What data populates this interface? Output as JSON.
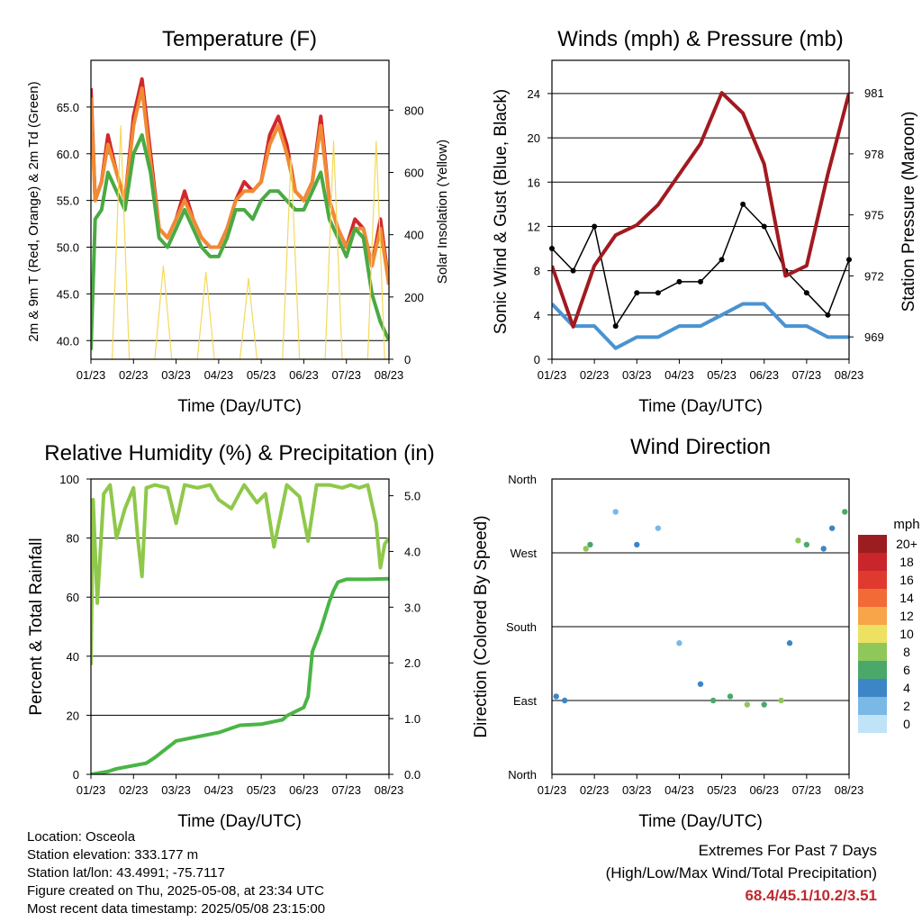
{
  "panels": {
    "temperature": {
      "title": "Temperature (F)",
      "ylabel_left": "2m & 9m T (Red, Orange) & 2m Td (Green)",
      "ylabel_right": "Solar Insolation (Yellow)",
      "xlabel": "Time (Day/UTC)"
    },
    "winds": {
      "title": "Winds (mph) & Pressure (mb)",
      "ylabel_left": "Sonic Wind & Gust (Blue, Black)",
      "ylabel_right": "Station Pressure (Maroon)",
      "xlabel": "Time (Day/UTC)"
    },
    "humidity": {
      "title": "Relative Humidity (%) & Precipitation (in)",
      "ylabel_left": "Percent & Total Rainfall",
      "xlabel": "Time (Day/UTC)"
    },
    "direction": {
      "title": "Wind Direction",
      "ylabel_left": "Direction (Colored By Speed)",
      "xlabel": "Time (Day/UTC)",
      "legend_title": "mph",
      "legend_labels": [
        "20+",
        "18",
        "16",
        "14",
        "12",
        "10",
        "8",
        "6",
        "4",
        "2",
        "0"
      ],
      "legend_colors": [
        "#9b1d20",
        "#c8262b",
        "#e03a2f",
        "#f26a36",
        "#f7a548",
        "#ece161",
        "#8fc75a",
        "#4aa86b",
        "#3d86c6",
        "#7ab8e6",
        "#bfe3f7"
      ]
    }
  },
  "info": {
    "location": "Location: Osceola",
    "elevation": "Station elevation: 333.177 m",
    "latlon": "Station lat/lon: 43.4991; -75.7117",
    "created": "Figure created on Thu, 2025-05-08, at 23:34 UTC",
    "recent": "Most recent data timestamp: 2025/05/08 23:15:00"
  },
  "extremes": {
    "title": "Extremes For Past 7 Days",
    "subtitle": "(High/Low/Max Wind/Total Precipitation)",
    "values": "68.4/45.1/10.2/3.51"
  },
  "chart_data": [
    {
      "type": "line",
      "title": "Temperature (F)",
      "xlabel": "Time (Day/UTC)",
      "ylabel": "2m & 9m T (Red, Orange) & 2m Td (Green)",
      "y2label": "Solar Insolation (Yellow)",
      "x_ticks": [
        "01/23",
        "02/23",
        "03/23",
        "04/23",
        "05/23",
        "06/23",
        "07/23",
        "08/23"
      ],
      "xlim": [
        0,
        7
      ],
      "ylim": [
        38,
        70
      ],
      "y_ticks": [
        40.0,
        45.0,
        50.0,
        55.0,
        60.0,
        65.0
      ],
      "y2lim": [
        0,
        960
      ],
      "y2_ticks": [
        0,
        200,
        400,
        600,
        800
      ],
      "grid": true,
      "series": [
        {
          "name": "2m T",
          "color": "#d0282d",
          "x": [
            0,
            0.1,
            0.25,
            0.4,
            0.6,
            0.8,
            1.0,
            1.2,
            1.4,
            1.6,
            1.8,
            2.0,
            2.2,
            2.4,
            2.6,
            2.8,
            3.0,
            3.2,
            3.4,
            3.6,
            3.8,
            4.0,
            4.2,
            4.4,
            4.6,
            4.8,
            5.0,
            5.2,
            5.4,
            5.6,
            5.8,
            6.0,
            6.2,
            6.4,
            6.6,
            6.8,
            7.0
          ],
          "y": [
            67,
            55,
            57,
            62,
            58,
            55,
            64,
            68,
            60,
            52,
            51,
            53,
            56,
            53,
            51,
            50,
            50,
            52,
            55,
            57,
            56,
            57,
            62,
            64,
            61,
            56,
            55,
            57,
            64,
            55,
            52,
            50,
            53,
            52,
            48,
            53,
            46
          ]
        },
        {
          "name": "9m T",
          "color": "#f18a33",
          "x": [
            0,
            0.1,
            0.25,
            0.4,
            0.6,
            0.8,
            1.0,
            1.2,
            1.4,
            1.6,
            1.8,
            2.0,
            2.2,
            2.4,
            2.6,
            2.8,
            3.0,
            3.2,
            3.4,
            3.6,
            3.8,
            4.0,
            4.2,
            4.4,
            4.6,
            4.8,
            5.0,
            5.2,
            5.4,
            5.6,
            5.8,
            6.0,
            6.2,
            6.4,
            6.6,
            6.8,
            7.0
          ],
          "y": [
            66,
            55,
            57,
            61,
            58,
            55,
            63,
            67,
            59,
            52,
            51,
            53,
            55,
            53,
            51,
            50,
            50,
            52,
            55,
            56,
            56,
            57,
            61,
            63,
            60,
            56,
            55,
            57,
            63,
            55,
            52,
            50,
            52,
            52,
            48,
            52,
            46
          ]
        },
        {
          "name": "2m Td",
          "color": "#4aaa43",
          "x": [
            0,
            0.1,
            0.25,
            0.4,
            0.6,
            0.8,
            1.0,
            1.2,
            1.4,
            1.6,
            1.8,
            2.0,
            2.2,
            2.4,
            2.6,
            2.8,
            3.0,
            3.2,
            3.4,
            3.6,
            3.8,
            4.0,
            4.2,
            4.4,
            4.6,
            4.8,
            5.0,
            5.2,
            5.4,
            5.6,
            5.8,
            6.0,
            6.2,
            6.4,
            6.6,
            6.8,
            7.0
          ],
          "y": [
            39,
            53,
            54,
            58,
            56,
            54,
            60,
            62,
            58,
            51,
            50,
            52,
            54,
            52,
            50,
            49,
            49,
            51,
            54,
            54,
            53,
            55,
            56,
            56,
            55,
            54,
            54,
            56,
            58,
            53,
            51,
            49,
            52,
            51,
            45,
            42,
            40
          ]
        },
        {
          "name": "Solar Insolation",
          "color": "#f3d95c",
          "axis": "right",
          "x": [
            0.5,
            0.7,
            0.9,
            1.5,
            1.7,
            1.9,
            2.5,
            2.7,
            2.9,
            3.5,
            3.7,
            3.9,
            4.5,
            4.7,
            4.9,
            5.5,
            5.7,
            5.9,
            6.5,
            6.7,
            6.9
          ],
          "y": [
            0,
            750,
            0,
            0,
            300,
            0,
            0,
            280,
            0,
            0,
            260,
            0,
            0,
            650,
            0,
            0,
            700,
            0,
            0,
            700,
            0
          ]
        }
      ]
    },
    {
      "type": "line",
      "title": "Winds (mph) & Pressure (mb)",
      "xlabel": "Time (Day/UTC)",
      "ylabel": "Sonic Wind & Gust (Blue, Black)",
      "y2label": "Station Pressure (Maroon)",
      "x_ticks": [
        "01/23",
        "02/23",
        "03/23",
        "04/23",
        "05/23",
        "06/23",
        "07/23",
        "08/23"
      ],
      "xlim": [
        0,
        7
      ],
      "ylim": [
        0,
        27
      ],
      "y_ticks": [
        0,
        4,
        8,
        12,
        16,
        20,
        24
      ],
      "y2lim": [
        967.9,
        982.6
      ],
      "y2_ticks": [
        969,
        972,
        975,
        978,
        981
      ],
      "grid": true,
      "series": [
        {
          "name": "Sonic Wind",
          "color": "#4a93d1",
          "x": [
            0,
            0.5,
            1.0,
            1.5,
            2.0,
            2.5,
            3.0,
            3.5,
            4.0,
            4.5,
            5.0,
            5.5,
            6.0,
            6.5,
            7.0
          ],
          "y": [
            5,
            3,
            3,
            1,
            2,
            2,
            3,
            3,
            4,
            5,
            5,
            3,
            3,
            2,
            2
          ]
        },
        {
          "name": "Gust",
          "color": "#000000",
          "x": [
            0,
            0.5,
            1.0,
            1.5,
            2.0,
            2.5,
            3.0,
            3.5,
            4.0,
            4.5,
            5.0,
            5.5,
            6.0,
            6.5,
            7.0
          ],
          "y": [
            10,
            8,
            12,
            3,
            6,
            6,
            7,
            7,
            9,
            14,
            12,
            8,
            6,
            4,
            9
          ]
        },
        {
          "name": "Station Pressure",
          "color": "#a11a20",
          "axis": "right",
          "x": [
            0,
            0.5,
            1.0,
            1.5,
            2.0,
            2.5,
            3.0,
            3.5,
            4.0,
            4.5,
            5.0,
            5.5,
            6.0,
            6.5,
            7.0
          ],
          "y": [
            972.5,
            969.5,
            972.5,
            974,
            974.5,
            975.5,
            977,
            978.5,
            981,
            980,
            977.5,
            972,
            972.5,
            977,
            981
          ]
        }
      ]
    },
    {
      "type": "line",
      "title": "Relative Humidity (%) & Precipitation (in)",
      "xlabel": "Time (Day/UTC)",
      "ylabel": "Percent & Total Rainfall",
      "x_ticks": [
        "01/23",
        "02/23",
        "03/23",
        "04/23",
        "05/23",
        "06/23",
        "07/23",
        "08/23"
      ],
      "xlim": [
        0,
        7
      ],
      "ylim": [
        0,
        100
      ],
      "y_ticks": [
        0,
        20,
        40,
        60,
        80,
        100
      ],
      "y2lim": [
        0.0,
        5.3
      ],
      "y2_ticks": [
        0.0,
        1.0,
        2.0,
        3.0,
        4.0,
        5.0
      ],
      "grid": true,
      "series": [
        {
          "name": "Relative Humidity",
          "color": "#8fc84a",
          "x": [
            0,
            0.05,
            0.15,
            0.3,
            0.45,
            0.6,
            0.8,
            1.0,
            1.1,
            1.2,
            1.3,
            1.5,
            1.8,
            2.0,
            2.2,
            2.5,
            2.8,
            3.0,
            3.3,
            3.6,
            3.9,
            4.1,
            4.3,
            4.6,
            4.9,
            5.1,
            5.3,
            5.6,
            5.9,
            6.1,
            6.3,
            6.5,
            6.7,
            6.8,
            6.9,
            7.0
          ],
          "y": [
            37,
            93,
            58,
            95,
            98,
            80,
            90,
            97,
            80,
            67,
            97,
            98,
            97,
            85,
            98,
            97,
            98,
            93,
            90,
            98,
            92,
            95,
            77,
            98,
            94,
            79,
            98,
            98,
            97,
            98,
            97,
            98,
            85,
            70,
            78,
            80
          ]
        },
        {
          "name": "Total Rainfall",
          "color": "#4ab546",
          "axis": "right",
          "x": [
            0,
            0.4,
            0.6,
            1.3,
            1.5,
            2.0,
            3.0,
            3.5,
            4.0,
            4.5,
            4.6,
            5.0,
            5.1,
            5.2,
            5.4,
            5.6,
            5.7,
            5.8,
            6.0,
            6.5,
            7.0
          ],
          "y": [
            0,
            0.05,
            0.1,
            0.2,
            0.3,
            0.6,
            0.75,
            0.88,
            0.9,
            0.98,
            1.05,
            1.2,
            1.4,
            2.2,
            2.6,
            3.1,
            3.3,
            3.45,
            3.5,
            3.5,
            3.51
          ]
        }
      ]
    },
    {
      "type": "scatter",
      "title": "Wind Direction",
      "xlabel": "Time (Day/UTC)",
      "ylabel": "Direction (Colored By Speed)",
      "x_ticks": [
        "01/23",
        "02/23",
        "03/23",
        "04/23",
        "05/23",
        "06/23",
        "07/23",
        "08/23"
      ],
      "xlim": [
        0,
        7
      ],
      "ylim": [
        0,
        360
      ],
      "y_ticks": [
        "North",
        "East",
        "South",
        "West",
        "North"
      ],
      "grid": true,
      "legend": {
        "title": "mph",
        "placement": "right"
      },
      "series": [
        {
          "name": "direction",
          "x": [
            0.1,
            0.3,
            0.8,
            0.9,
            1.5,
            2.0,
            2.5,
            3.0,
            3.5,
            3.8,
            4.2,
            4.6,
            5.0,
            5.4,
            5.6,
            5.8,
            6.0,
            6.4,
            6.6,
            6.9
          ],
          "y": [
            95,
            90,
            275,
            280,
            320,
            280,
            300,
            160,
            110,
            90,
            95,
            85,
            85,
            90,
            160,
            285,
            280,
            275,
            300,
            320
          ],
          "speed": [
            4,
            3,
            8,
            6,
            2,
            4,
            2,
            1,
            3,
            5,
            6,
            7,
            6,
            7,
            4,
            8,
            6,
            4,
            3,
            5
          ]
        }
      ]
    }
  ]
}
